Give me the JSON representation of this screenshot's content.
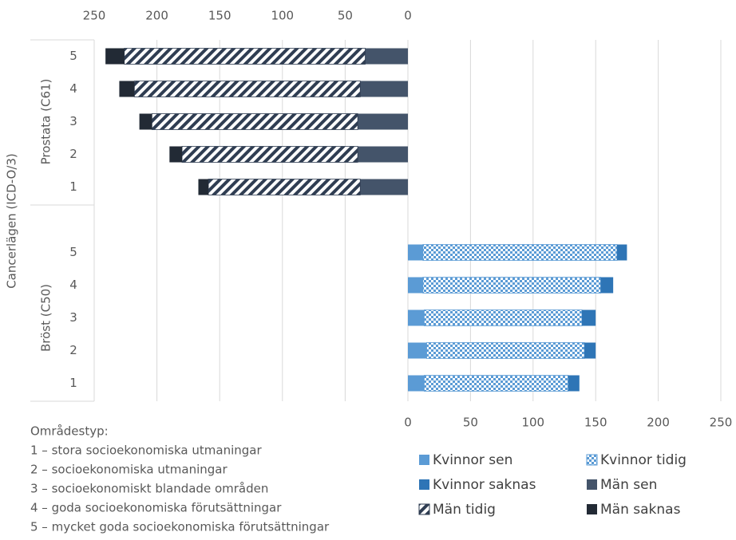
{
  "chart_data": {
    "type": "bar",
    "orientation": "horizontal",
    "stacked": true,
    "y_axis_title": "Cancerlägen (ICD-O/3)",
    "groups": [
      {
        "name": "Prostata (C61)",
        "categories": [
          "5",
          "4",
          "3",
          "2",
          "1"
        ]
      },
      {
        "name": "Bröst (C50)",
        "categories": [
          "5",
          "4",
          "3",
          "2",
          "1"
        ]
      }
    ],
    "series": [
      {
        "name": "Kvinnor sen",
        "color": "#5b9bd5",
        "pattern": "solid",
        "values": [
          null,
          null,
          null,
          null,
          null,
          12,
          12,
          13,
          15,
          13
        ]
      },
      {
        "name": "Kvinnor tidig",
        "color": "#5b9bd5",
        "pattern": "checker",
        "values": [
          null,
          null,
          null,
          null,
          null,
          155,
          142,
          126,
          126,
          115
        ]
      },
      {
        "name": "Kvinnor saknas",
        "color": "#2e75b6",
        "pattern": "solid",
        "values": [
          null,
          null,
          null,
          null,
          null,
          8,
          10,
          11,
          9,
          9
        ]
      },
      {
        "name": "Män sen",
        "color": "#44546a",
        "pattern": "solid",
        "axis": "x2",
        "values": [
          34,
          38,
          40,
          40,
          38,
          null,
          null,
          null,
          null,
          null
        ]
      },
      {
        "name": "Män tidig",
        "color": "#2f3d52",
        "pattern": "diagonal",
        "axis": "x2",
        "values": [
          192,
          180,
          164,
          140,
          121,
          null,
          null,
          null,
          null,
          null
        ]
      },
      {
        "name": "Män saknas",
        "color": "#222a35",
        "pattern": "solid",
        "axis": "x2",
        "values": [
          15,
          12,
          10,
          10,
          8,
          null,
          null,
          null,
          null,
          null
        ]
      }
    ],
    "xlim": [
      0,
      250
    ],
    "xticks": [
      0,
      50,
      100,
      150,
      200,
      250
    ],
    "x2lim": [
      0,
      250
    ],
    "x2ticks": [
      0,
      50,
      100,
      150,
      200,
      250
    ],
    "x2_reversed": true,
    "grid": true,
    "notes": [
      "Områdestyp:",
      "1 – stora socioekonomiska utmaningar",
      "2 – socioekonomiska utmaningar",
      "3 – socioekonomiskt blandade områden",
      "4 – goda socioekonomiska förutsättningar",
      "5 – mycket goda socioekonomiska förutsättningar"
    ]
  }
}
